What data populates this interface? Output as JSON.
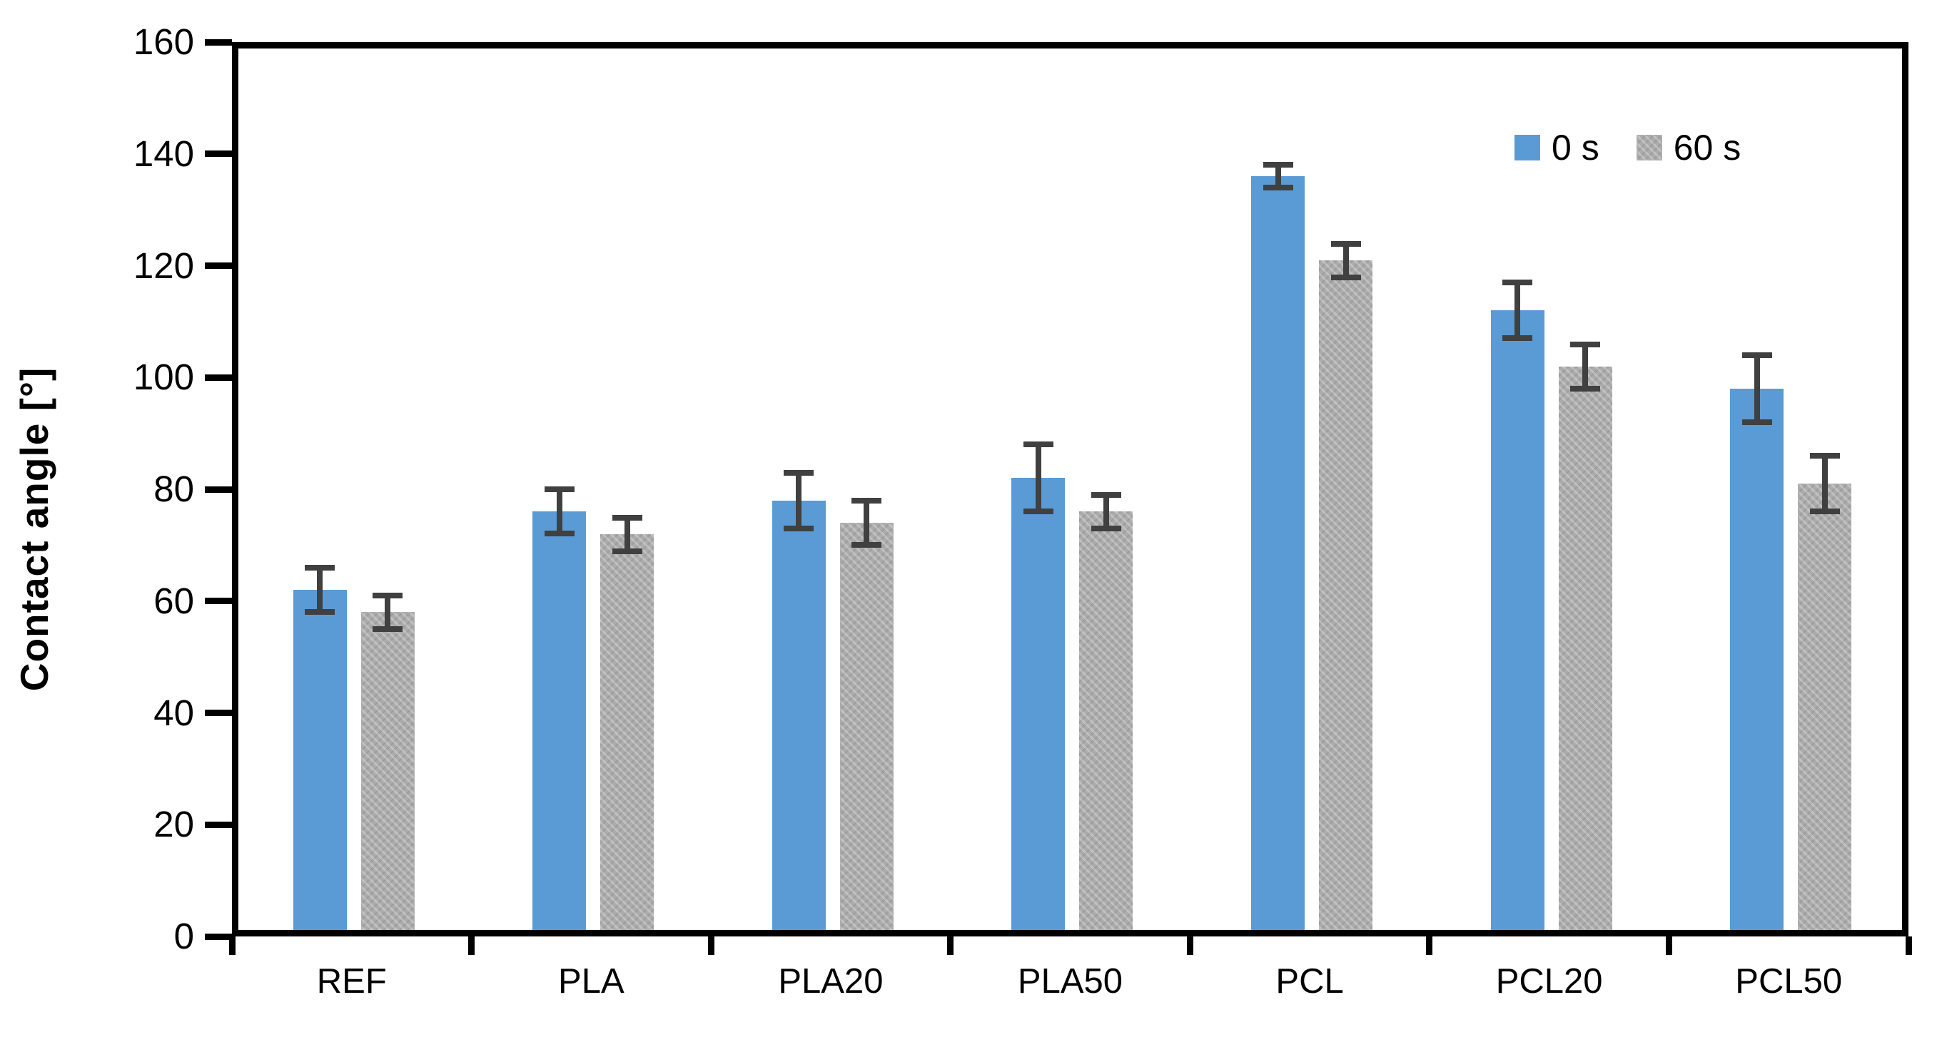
{
  "chart_data": {
    "type": "bar",
    "title": "",
    "xlabel": "",
    "ylabel": "Contact angle [°]",
    "ylim": [
      0,
      160
    ],
    "yticks": [
      0,
      20,
      40,
      60,
      80,
      100,
      120,
      140,
      160
    ],
    "grid": false,
    "legend_position": "top-right",
    "categories": [
      "REF",
      "PLA",
      "PLA20",
      "PLA50",
      "PCL",
      "PCL20",
      "PCL50"
    ],
    "series": [
      {
        "name": "0 s",
        "color": "#5B9BD5",
        "pattern": false,
        "values": [
          62,
          76,
          78,
          82,
          136,
          112,
          98
        ],
        "errors": [
          4,
          4,
          5,
          6,
          2,
          5,
          6
        ]
      },
      {
        "name": "60 s",
        "color": "#ACACAC",
        "pattern": true,
        "values": [
          58,
          72,
          74,
          76,
          121,
          102,
          81
        ],
        "errors": [
          3,
          3,
          4,
          3,
          3,
          4,
          5
        ]
      }
    ],
    "error_bar_color": "#404040",
    "axis_color": "#000000"
  }
}
